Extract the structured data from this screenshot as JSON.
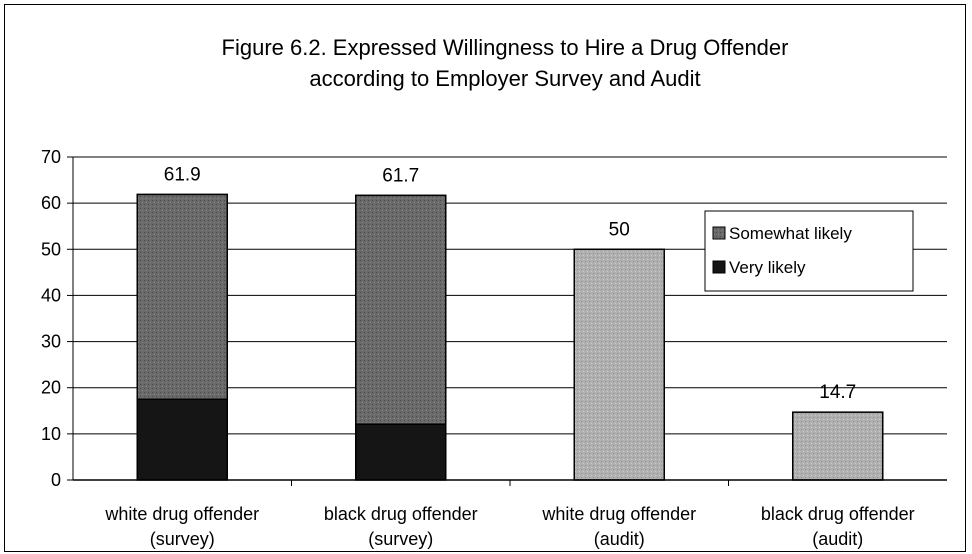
{
  "chart_data": {
    "type": "bar",
    "title_line1": "Figure 6.2. Expressed Willingness to Hire a Drug Offender",
    "title_line2": "according to Employer Survey and Audit",
    "categories": [
      [
        "white drug offender",
        "(survey)"
      ],
      [
        "black drug offender",
        "(survey)"
      ],
      [
        "white drug offender",
        "(audit)"
      ],
      [
        "black drug offender",
        "(audit)"
      ]
    ],
    "series": [
      {
        "name": "Very likely",
        "values": [
          17.5,
          12.1,
          0,
          0
        ]
      },
      {
        "name": "Somewhat likely",
        "values": [
          44.4,
          49.6,
          50,
          14.7
        ]
      }
    ],
    "totals": [
      61.9,
      61.7,
      50,
      14.7
    ],
    "total_labels": [
      "61.9",
      "61.7",
      "50",
      "14.7"
    ],
    "yticks": [
      0,
      10,
      20,
      30,
      40,
      50,
      60,
      70
    ],
    "ylim": [
      0,
      70
    ],
    "grid": true,
    "legend_position": "top-right",
    "legend_entries": [
      "Somewhat likely",
      "Very likely"
    ],
    "colors": {
      "very_likely": "#151515",
      "somewhat_survey": "#5e5e5e",
      "somewhat_audit": "#a9a9a9",
      "gridline": "#000000",
      "border": "#000000"
    }
  }
}
